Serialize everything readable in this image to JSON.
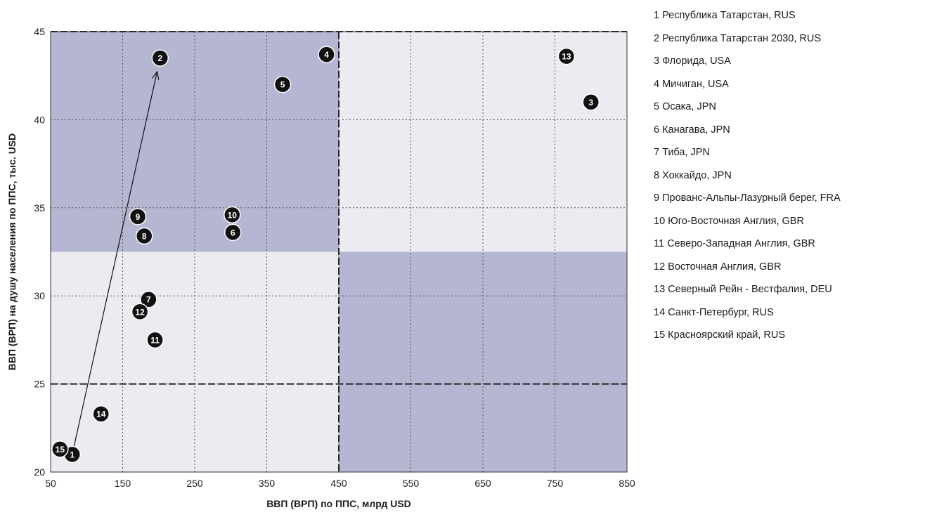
{
  "chart_data": {
    "type": "scatter",
    "xlabel": "ВВП (ВРП) по ППС, млрд USD",
    "ylabel": "ВВП (ВРП) на душу  населения по ППС, тыс. USD",
    "xlim": [
      50,
      850
    ],
    "ylim": [
      20,
      45
    ],
    "x_ticks": [
      "50",
      "150",
      "250",
      "350",
      "450",
      "550",
      "650",
      "750",
      "850"
    ],
    "y_ticks": [
      "20",
      "25",
      "30",
      "35",
      "40",
      "45"
    ],
    "grid": true,
    "legend_position": "right",
    "divider_x": 450,
    "divider_y": 25,
    "shaded_regions": [
      {
        "x": [
          50,
          450
        ],
        "y": [
          32.5,
          45
        ],
        "shade": "dark"
      },
      {
        "x": [
          450,
          850
        ],
        "y": [
          20,
          32.5
        ],
        "shade": "dark"
      },
      {
        "x": [
          50,
          450
        ],
        "y": [
          20,
          32.5
        ],
        "shade": "light"
      },
      {
        "x": [
          450,
          850
        ],
        "y": [
          32.5,
          45
        ],
        "shade": "light"
      }
    ],
    "arrow": {
      "from": "1",
      "to": "2"
    },
    "points": [
      {
        "id": "1",
        "x": 80,
        "y": 21.0
      },
      {
        "id": "2",
        "x": 202,
        "y": 43.5
      },
      {
        "id": "3",
        "x": 800,
        "y": 41.0
      },
      {
        "id": "4",
        "x": 433,
        "y": 43.7
      },
      {
        "id": "5",
        "x": 372,
        "y": 42.0
      },
      {
        "id": "6",
        "x": 303,
        "y": 33.6
      },
      {
        "id": "7",
        "x": 186,
        "y": 29.8
      },
      {
        "id": "8",
        "x": 180,
        "y": 33.4
      },
      {
        "id": "9",
        "x": 171,
        "y": 34.5
      },
      {
        "id": "10",
        "x": 302,
        "y": 34.6
      },
      {
        "id": "11",
        "x": 195,
        "y": 27.5
      },
      {
        "id": "12",
        "x": 174,
        "y": 29.1
      },
      {
        "id": "13",
        "x": 766,
        "y": 43.6
      },
      {
        "id": "14",
        "x": 120,
        "y": 23.3
      },
      {
        "id": "15",
        "x": 63,
        "y": 21.3
      }
    ],
    "legend": [
      "1 Республика Татарстан, RUS",
      "2 Республика Татарстан 2030, RUS",
      "3 Флорида, USA",
      "4 Мичиган, USA",
      "5 Осака, JPN",
      "6 Канагава, JPN",
      "7 Тиба, JPN",
      "8 Хоккайдо, JPN",
      "9 Прованс-Альпы-Лазурный берег, FRA",
      "10 Юго-Восточная Англия, GBR",
      "11 Северо-Западная Англия, GBR",
      "12 Восточная Англия, GBR",
      "13 Северный Рейн - Вестфалия, DEU",
      "14 Санкт-Петербург, RUS",
      "15 Красноярский край, RUS"
    ],
    "colors": {
      "dark_region": "#b4b6d2",
      "light_region": "#ebebf1",
      "point": "#111111",
      "grid": "#555555"
    }
  }
}
